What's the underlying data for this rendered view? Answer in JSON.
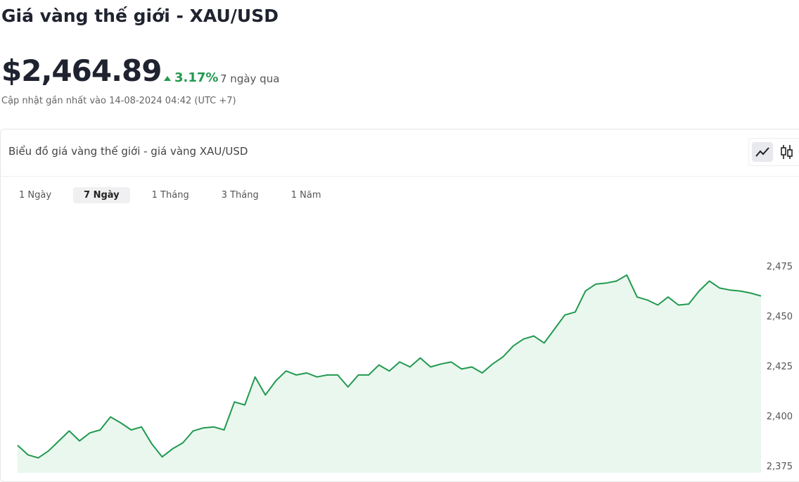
{
  "header": {
    "title": "Giá vàng thế giới - XAU/USD",
    "price": "$2,464.89",
    "change": "3.17%",
    "period": "7 ngày qua",
    "updated": "Cập nhật gần nhất vào 14-08-2024 04:42 (UTC +7)"
  },
  "card": {
    "title": "Biểu đồ giá vàng thế giới - giá vàng XAU/USD",
    "tabs": [
      "1 Ngày",
      "7 Ngày",
      "1 Tháng",
      "3 Tháng",
      "1 Năm"
    ],
    "selected_tab": 1
  },
  "chart_data": {
    "type": "area",
    "color": "#22994f",
    "fill": "#e9f7ee",
    "values": [
      2385.8,
      2381,
      2379.5,
      2383,
      2388,
      2393,
      2388,
      2392,
      2393.5,
      2400,
      2397,
      2393.5,
      2395,
      2386.5,
      2380,
      2384,
      2387,
      2393,
      2394.5,
      2395,
      2393.5,
      2407.5,
      2406,
      2420,
      2411,
      2418,
      2423,
      2421,
      2422,
      2420,
      2421,
      2421,
      2415,
      2421,
      2421,
      2426,
      2423,
      2427.5,
      2425,
      2429.5,
      2425,
      2426.5,
      2427.5,
      2424,
      2425,
      2422,
      2426.5,
      2430,
      2435.5,
      2439,
      2440.5,
      2437,
      2444,
      2451,
      2452.5,
      2463,
      2466.5,
      2467,
      2468,
      2471,
      2460,
      2458.5,
      2456,
      2460,
      2456,
      2456.5,
      2463,
      2468,
      2464.5,
      2463.5,
      2463,
      2462,
      2460.5
    ],
    "ylim": [
      2372,
      2484
    ],
    "yticks": [
      {
        "value": 2375,
        "label": "2,375"
      },
      {
        "value": 2400,
        "label": "2,400"
      },
      {
        "value": 2425,
        "label": "2,425"
      },
      {
        "value": 2450,
        "label": "2,450"
      },
      {
        "value": 2475,
        "label": "2,475"
      }
    ]
  }
}
